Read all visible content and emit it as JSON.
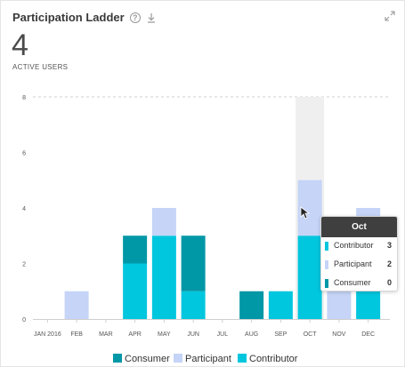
{
  "header": {
    "title": "Participation Ladder"
  },
  "kpi": {
    "value": "4",
    "label": "ACTIVE USERS"
  },
  "colors": {
    "consumer": "#0097a7",
    "participant": "#c5d4f7",
    "contributor": "#00c6de",
    "hover": "#efefef"
  },
  "chart_data": {
    "type": "bar",
    "stacked": true,
    "categories": [
      "JAN 2016",
      "FEB",
      "MAR",
      "APR",
      "MAY",
      "JUN",
      "JUL",
      "AUG",
      "SEP",
      "OCT",
      "NOV",
      "DEC"
    ],
    "series": [
      {
        "name": "Contributor",
        "key": "contributor",
        "values": [
          0,
          0,
          0,
          2,
          3,
          1,
          0,
          0,
          1,
          3,
          0,
          2
        ]
      },
      {
        "name": "Consumer",
        "key": "consumer",
        "values": [
          0,
          0,
          0,
          1,
          0,
          2,
          0,
          1,
          0,
          0,
          0,
          0
        ]
      },
      {
        "name": "Participant",
        "key": "participant",
        "values": [
          0,
          1,
          0,
          0,
          1,
          0,
          0,
          0,
          0,
          2,
          1,
          2
        ]
      }
    ],
    "ylim": [
      0,
      8
    ],
    "yticks": [
      0,
      2,
      4,
      6,
      8
    ],
    "highlighted": "OCT",
    "legend": [
      "Consumer",
      "Participant",
      "Contributor"
    ],
    "legend_position": "bottom"
  },
  "tooltip": {
    "title": "Oct",
    "rows": [
      {
        "name": "Contributor",
        "value": "3"
      },
      {
        "name": "Participant",
        "value": "2"
      },
      {
        "name": "Consumer",
        "value": "0"
      }
    ]
  }
}
